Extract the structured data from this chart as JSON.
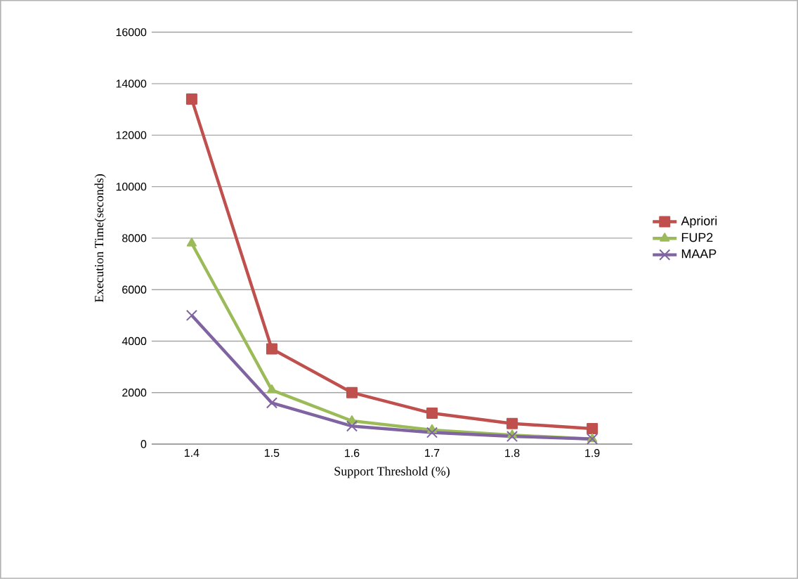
{
  "chart_data": {
    "type": "line",
    "xlabel": "Support Threshold (%)",
    "ylabel": "Execution Time(seconds)",
    "categories": [
      "1.4",
      "1.5",
      "1.6",
      "1.7",
      "1.8",
      "1.9"
    ],
    "series": [
      {
        "name": "Apriori",
        "color": "#c0504d",
        "marker": "square",
        "values": [
          13400,
          3700,
          2000,
          1200,
          800,
          600
        ]
      },
      {
        "name": "FUP2",
        "color": "#9bbb59",
        "marker": "triangle",
        "values": [
          7800,
          2100,
          900,
          550,
          350,
          200
        ]
      },
      {
        "name": "MAAP",
        "color": "#8064a2",
        "marker": "cross",
        "values": [
          5000,
          1600,
          700,
          450,
          300,
          200
        ]
      }
    ],
    "ylim": [
      0,
      16000
    ],
    "yticks": [
      0,
      2000,
      4000,
      6000,
      8000,
      10000,
      12000,
      14000,
      16000
    ],
    "grid": "y",
    "legend": "right"
  }
}
